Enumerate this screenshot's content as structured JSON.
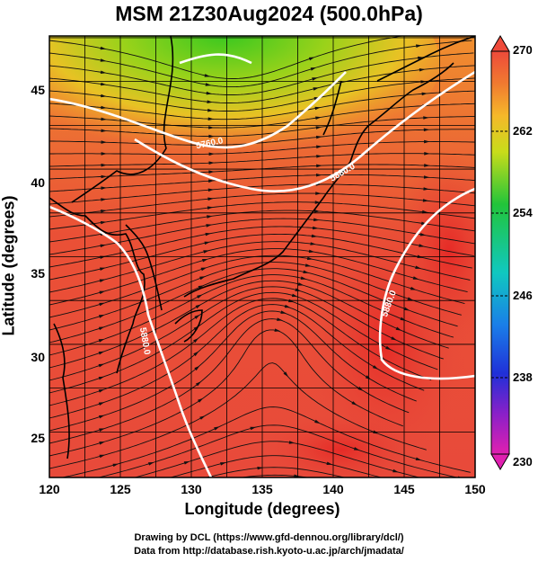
{
  "title": "MSM 21Z30Aug2024 (500.0hPa)",
  "xlabel": "Longitude (degrees)",
  "ylabel": "Latitude  (degrees)",
  "credit_line1": "Drawing by DCL (https://www.gfd-dennou.org/library/dcl/)",
  "credit_line2": "Data from http://database.rish.kyoto-u.ac.jp/arch/jmadata/",
  "chart_data": {
    "type": "heatmap",
    "x_ticks": [
      "120",
      "125",
      "130",
      "135",
      "140",
      "145",
      "150"
    ],
    "y_ticks": [
      "45",
      "40",
      "35",
      "30",
      "25"
    ],
    "xlim": [
      120,
      150
    ],
    "ylim": [
      22.4,
      47.6
    ],
    "colorbar": {
      "ticks": [
        "270",
        "262",
        "254",
        "246",
        "238",
        "230"
      ],
      "range": [
        230,
        270
      ]
    },
    "contour_labels": [
      "5760.0",
      "5880.0",
      "5880.0",
      "5880.0",
      "5880.0"
    ]
  }
}
